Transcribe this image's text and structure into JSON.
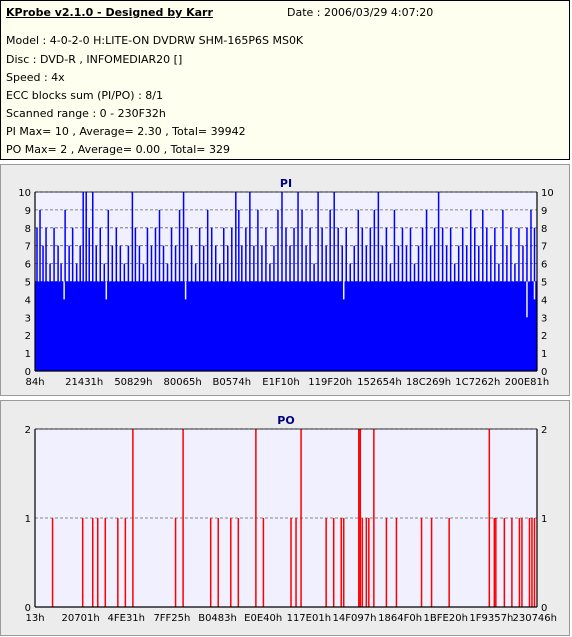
{
  "header": {
    "title": "KProbe v2.1.0 - Designed by Karr",
    "date": "Date : 2006/03/29 4:07:20",
    "lines": [
      "Model : 4-0-2-0 H:LITE-ON DVDRW SHM-165P6S MS0K",
      "Disc : DVD-R , INFOMEDIAR20 []",
      "Speed : 4x",
      "ECC blocks sum (PI/PO) : 8/1",
      "Scanned range : 0 - 230F32h",
      "PI Max= 10 , Average= 2.30 , Total= 39942",
      "PO Max= 2 , Average= 0.00 , Total= 329"
    ]
  },
  "colors": {
    "pi": "#0000ff",
    "po": "#ff0000",
    "plot_bg": "#f0f0ff",
    "panel_bg": "#ececec",
    "info_bg": "#fffff0"
  },
  "chart_data": [
    {
      "type": "bar",
      "title": "PI",
      "ylim": [
        0,
        10
      ],
      "yticks": [
        0,
        1,
        2,
        3,
        4,
        5,
        6,
        7,
        8,
        9,
        10
      ],
      "grid": true,
      "xtick_labels": [
        "84h",
        "21431h",
        "50829h",
        "80065h",
        "B0574h",
        "E1F10h",
        "119F20h",
        "152654h",
        "18C269h",
        "1C7262h",
        "200E81h"
      ],
      "series": [
        {
          "color": "#0000ff",
          "base_level": 5,
          "spikes": [
            {
              "pos": 0.004,
              "value": 8
            },
            {
              "pos": 0.01,
              "value": 9
            },
            {
              "pos": 0.016,
              "value": 7
            },
            {
              "pos": 0.022,
              "value": 8
            },
            {
              "pos": 0.03,
              "value": 6
            },
            {
              "pos": 0.038,
              "value": 8
            },
            {
              "pos": 0.046,
              "value": 7
            },
            {
              "pos": 0.052,
              "value": 6
            },
            {
              "pos": 0.06,
              "value": 9
            },
            {
              "pos": 0.068,
              "value": 7
            },
            {
              "pos": 0.075,
              "value": 8
            },
            {
              "pos": 0.083,
              "value": 6
            },
            {
              "pos": 0.09,
              "value": 7
            },
            {
              "pos": 0.096,
              "value": 10
            },
            {
              "pos": 0.102,
              "value": 10
            },
            {
              "pos": 0.108,
              "value": 8
            },
            {
              "pos": 0.115,
              "value": 10
            },
            {
              "pos": 0.122,
              "value": 7
            },
            {
              "pos": 0.13,
              "value": 8
            },
            {
              "pos": 0.138,
              "value": 6
            },
            {
              "pos": 0.146,
              "value": 9
            },
            {
              "pos": 0.154,
              "value": 7
            },
            {
              "pos": 0.162,
              "value": 8
            },
            {
              "pos": 0.17,
              "value": 7
            },
            {
              "pos": 0.178,
              "value": 6
            },
            {
              "pos": 0.186,
              "value": 7
            },
            {
              "pos": 0.194,
              "value": 10
            },
            {
              "pos": 0.2,
              "value": 8
            },
            {
              "pos": 0.208,
              "value": 7
            },
            {
              "pos": 0.216,
              "value": 6
            },
            {
              "pos": 0.224,
              "value": 8
            },
            {
              "pos": 0.232,
              "value": 7
            },
            {
              "pos": 0.24,
              "value": 8
            },
            {
              "pos": 0.248,
              "value": 9
            },
            {
              "pos": 0.256,
              "value": 7
            },
            {
              "pos": 0.264,
              "value": 6
            },
            {
              "pos": 0.272,
              "value": 8
            },
            {
              "pos": 0.28,
              "value": 7
            },
            {
              "pos": 0.288,
              "value": 9
            },
            {
              "pos": 0.296,
              "value": 10
            },
            {
              "pos": 0.304,
              "value": 8
            },
            {
              "pos": 0.312,
              "value": 7
            },
            {
              "pos": 0.32,
              "value": 6
            },
            {
              "pos": 0.328,
              "value": 8
            },
            {
              "pos": 0.336,
              "value": 7
            },
            {
              "pos": 0.344,
              "value": 9
            },
            {
              "pos": 0.352,
              "value": 8
            },
            {
              "pos": 0.36,
              "value": 7
            },
            {
              "pos": 0.368,
              "value": 6
            },
            {
              "pos": 0.376,
              "value": 8
            },
            {
              "pos": 0.384,
              "value": 7
            },
            {
              "pos": 0.392,
              "value": 8
            },
            {
              "pos": 0.4,
              "value": 10
            },
            {
              "pos": 0.406,
              "value": 9
            },
            {
              "pos": 0.412,
              "value": 7
            },
            {
              "pos": 0.42,
              "value": 8
            },
            {
              "pos": 0.428,
              "value": 10
            },
            {
              "pos": 0.436,
              "value": 7
            },
            {
              "pos": 0.444,
              "value": 9
            },
            {
              "pos": 0.452,
              "value": 7
            },
            {
              "pos": 0.46,
              "value": 8
            },
            {
              "pos": 0.468,
              "value": 6
            },
            {
              "pos": 0.476,
              "value": 7
            },
            {
              "pos": 0.484,
              "value": 9
            },
            {
              "pos": 0.492,
              "value": 10
            },
            {
              "pos": 0.5,
              "value": 8
            },
            {
              "pos": 0.508,
              "value": 7
            },
            {
              "pos": 0.516,
              "value": 8
            },
            {
              "pos": 0.524,
              "value": 10
            },
            {
              "pos": 0.532,
              "value": 9
            },
            {
              "pos": 0.54,
              "value": 7
            },
            {
              "pos": 0.548,
              "value": 8
            },
            {
              "pos": 0.556,
              "value": 6
            },
            {
              "pos": 0.564,
              "value": 10
            },
            {
              "pos": 0.572,
              "value": 8
            },
            {
              "pos": 0.58,
              "value": 7
            },
            {
              "pos": 0.588,
              "value": 9
            },
            {
              "pos": 0.596,
              "value": 10
            },
            {
              "pos": 0.604,
              "value": 8
            },
            {
              "pos": 0.612,
              "value": 7
            },
            {
              "pos": 0.62,
              "value": 8
            },
            {
              "pos": 0.628,
              "value": 6
            },
            {
              "pos": 0.636,
              "value": 7
            },
            {
              "pos": 0.644,
              "value": 9
            },
            {
              "pos": 0.652,
              "value": 8
            },
            {
              "pos": 0.66,
              "value": 7
            },
            {
              "pos": 0.668,
              "value": 8
            },
            {
              "pos": 0.676,
              "value": 9
            },
            {
              "pos": 0.684,
              "value": 10
            },
            {
              "pos": 0.692,
              "value": 7
            },
            {
              "pos": 0.7,
              "value": 8
            },
            {
              "pos": 0.708,
              "value": 6
            },
            {
              "pos": 0.716,
              "value": 9
            },
            {
              "pos": 0.724,
              "value": 7
            },
            {
              "pos": 0.732,
              "value": 8
            },
            {
              "pos": 0.74,
              "value": 7
            },
            {
              "pos": 0.748,
              "value": 8
            },
            {
              "pos": 0.756,
              "value": 6
            },
            {
              "pos": 0.764,
              "value": 7
            },
            {
              "pos": 0.772,
              "value": 8
            },
            {
              "pos": 0.78,
              "value": 9
            },
            {
              "pos": 0.788,
              "value": 7
            },
            {
              "pos": 0.796,
              "value": 8
            },
            {
              "pos": 0.804,
              "value": 10
            },
            {
              "pos": 0.812,
              "value": 8
            },
            {
              "pos": 0.82,
              "value": 7
            },
            {
              "pos": 0.828,
              "value": 8
            },
            {
              "pos": 0.836,
              "value": 6
            },
            {
              "pos": 0.844,
              "value": 7
            },
            {
              "pos": 0.852,
              "value": 8
            },
            {
              "pos": 0.86,
              "value": 7
            },
            {
              "pos": 0.868,
              "value": 9
            },
            {
              "pos": 0.876,
              "value": 8
            },
            {
              "pos": 0.884,
              "value": 7
            },
            {
              "pos": 0.892,
              "value": 9
            },
            {
              "pos": 0.9,
              "value": 8
            },
            {
              "pos": 0.908,
              "value": 7
            },
            {
              "pos": 0.916,
              "value": 8
            },
            {
              "pos": 0.924,
              "value": 6
            },
            {
              "pos": 0.932,
              "value": 9
            },
            {
              "pos": 0.94,
              "value": 7
            },
            {
              "pos": 0.948,
              "value": 8
            },
            {
              "pos": 0.956,
              "value": 6
            },
            {
              "pos": 0.964,
              "value": 8
            },
            {
              "pos": 0.972,
              "value": 7
            },
            {
              "pos": 0.98,
              "value": 8
            },
            {
              "pos": 0.988,
              "value": 9
            },
            {
              "pos": 0.995,
              "value": 8
            }
          ],
          "dips": [
            {
              "pos": 0.058,
              "value": 4
            },
            {
              "pos": 0.142,
              "value": 4
            },
            {
              "pos": 0.3,
              "value": 4
            },
            {
              "pos": 0.615,
              "value": 4
            },
            {
              "pos": 0.98,
              "value": 3
            },
            {
              "pos": 0.995,
              "value": 4
            }
          ]
        }
      ]
    },
    {
      "type": "bar",
      "title": "PO",
      "ylim": [
        0,
        2
      ],
      "yticks": [
        0,
        1,
        2
      ],
      "grid": true,
      "xtick_labels": [
        "13h",
        "20701h",
        "4FE31h",
        "7FF25h",
        "B0483h",
        "E0E40h",
        "117E01h",
        "14F097h",
        "1864F0h",
        "1BFE20h",
        "1F9357h",
        "230746h"
      ],
      "series": [
        {
          "color": "#ff0000",
          "spikes": [
            {
              "pos": 0.035,
              "value": 1
            },
            {
              "pos": 0.095,
              "value": 1
            },
            {
              "pos": 0.115,
              "value": 1
            },
            {
              "pos": 0.125,
              "value": 1
            },
            {
              "pos": 0.14,
              "value": 1
            },
            {
              "pos": 0.165,
              "value": 1
            },
            {
              "pos": 0.18,
              "value": 1
            },
            {
              "pos": 0.195,
              "value": 2
            },
            {
              "pos": 0.28,
              "value": 1
            },
            {
              "pos": 0.295,
              "value": 2
            },
            {
              "pos": 0.35,
              "value": 1
            },
            {
              "pos": 0.365,
              "value": 1
            },
            {
              "pos": 0.39,
              "value": 1
            },
            {
              "pos": 0.405,
              "value": 1
            },
            {
              "pos": 0.44,
              "value": 2
            },
            {
              "pos": 0.455,
              "value": 1
            },
            {
              "pos": 0.51,
              "value": 1
            },
            {
              "pos": 0.52,
              "value": 1
            },
            {
              "pos": 0.53,
              "value": 2
            },
            {
              "pos": 0.58,
              "value": 1
            },
            {
              "pos": 0.595,
              "value": 1
            },
            {
              "pos": 0.61,
              "value": 1
            },
            {
              "pos": 0.615,
              "value": 1
            },
            {
              "pos": 0.645,
              "value": 2
            },
            {
              "pos": 0.648,
              "value": 2
            },
            {
              "pos": 0.652,
              "value": 1
            },
            {
              "pos": 0.66,
              "value": 1
            },
            {
              "pos": 0.665,
              "value": 1
            },
            {
              "pos": 0.675,
              "value": 2
            },
            {
              "pos": 0.7,
              "value": 1
            },
            {
              "pos": 0.72,
              "value": 1
            },
            {
              "pos": 0.77,
              "value": 1
            },
            {
              "pos": 0.79,
              "value": 1
            },
            {
              "pos": 0.825,
              "value": 1
            },
            {
              "pos": 0.905,
              "value": 2
            },
            {
              "pos": 0.915,
              "value": 1
            },
            {
              "pos": 0.918,
              "value": 1
            },
            {
              "pos": 0.935,
              "value": 1
            },
            {
              "pos": 0.95,
              "value": 1
            },
            {
              "pos": 0.965,
              "value": 1
            },
            {
              "pos": 0.97,
              "value": 1
            },
            {
              "pos": 0.985,
              "value": 1
            },
            {
              "pos": 0.99,
              "value": 1
            },
            {
              "pos": 0.995,
              "value": 1
            }
          ]
        }
      ]
    }
  ]
}
